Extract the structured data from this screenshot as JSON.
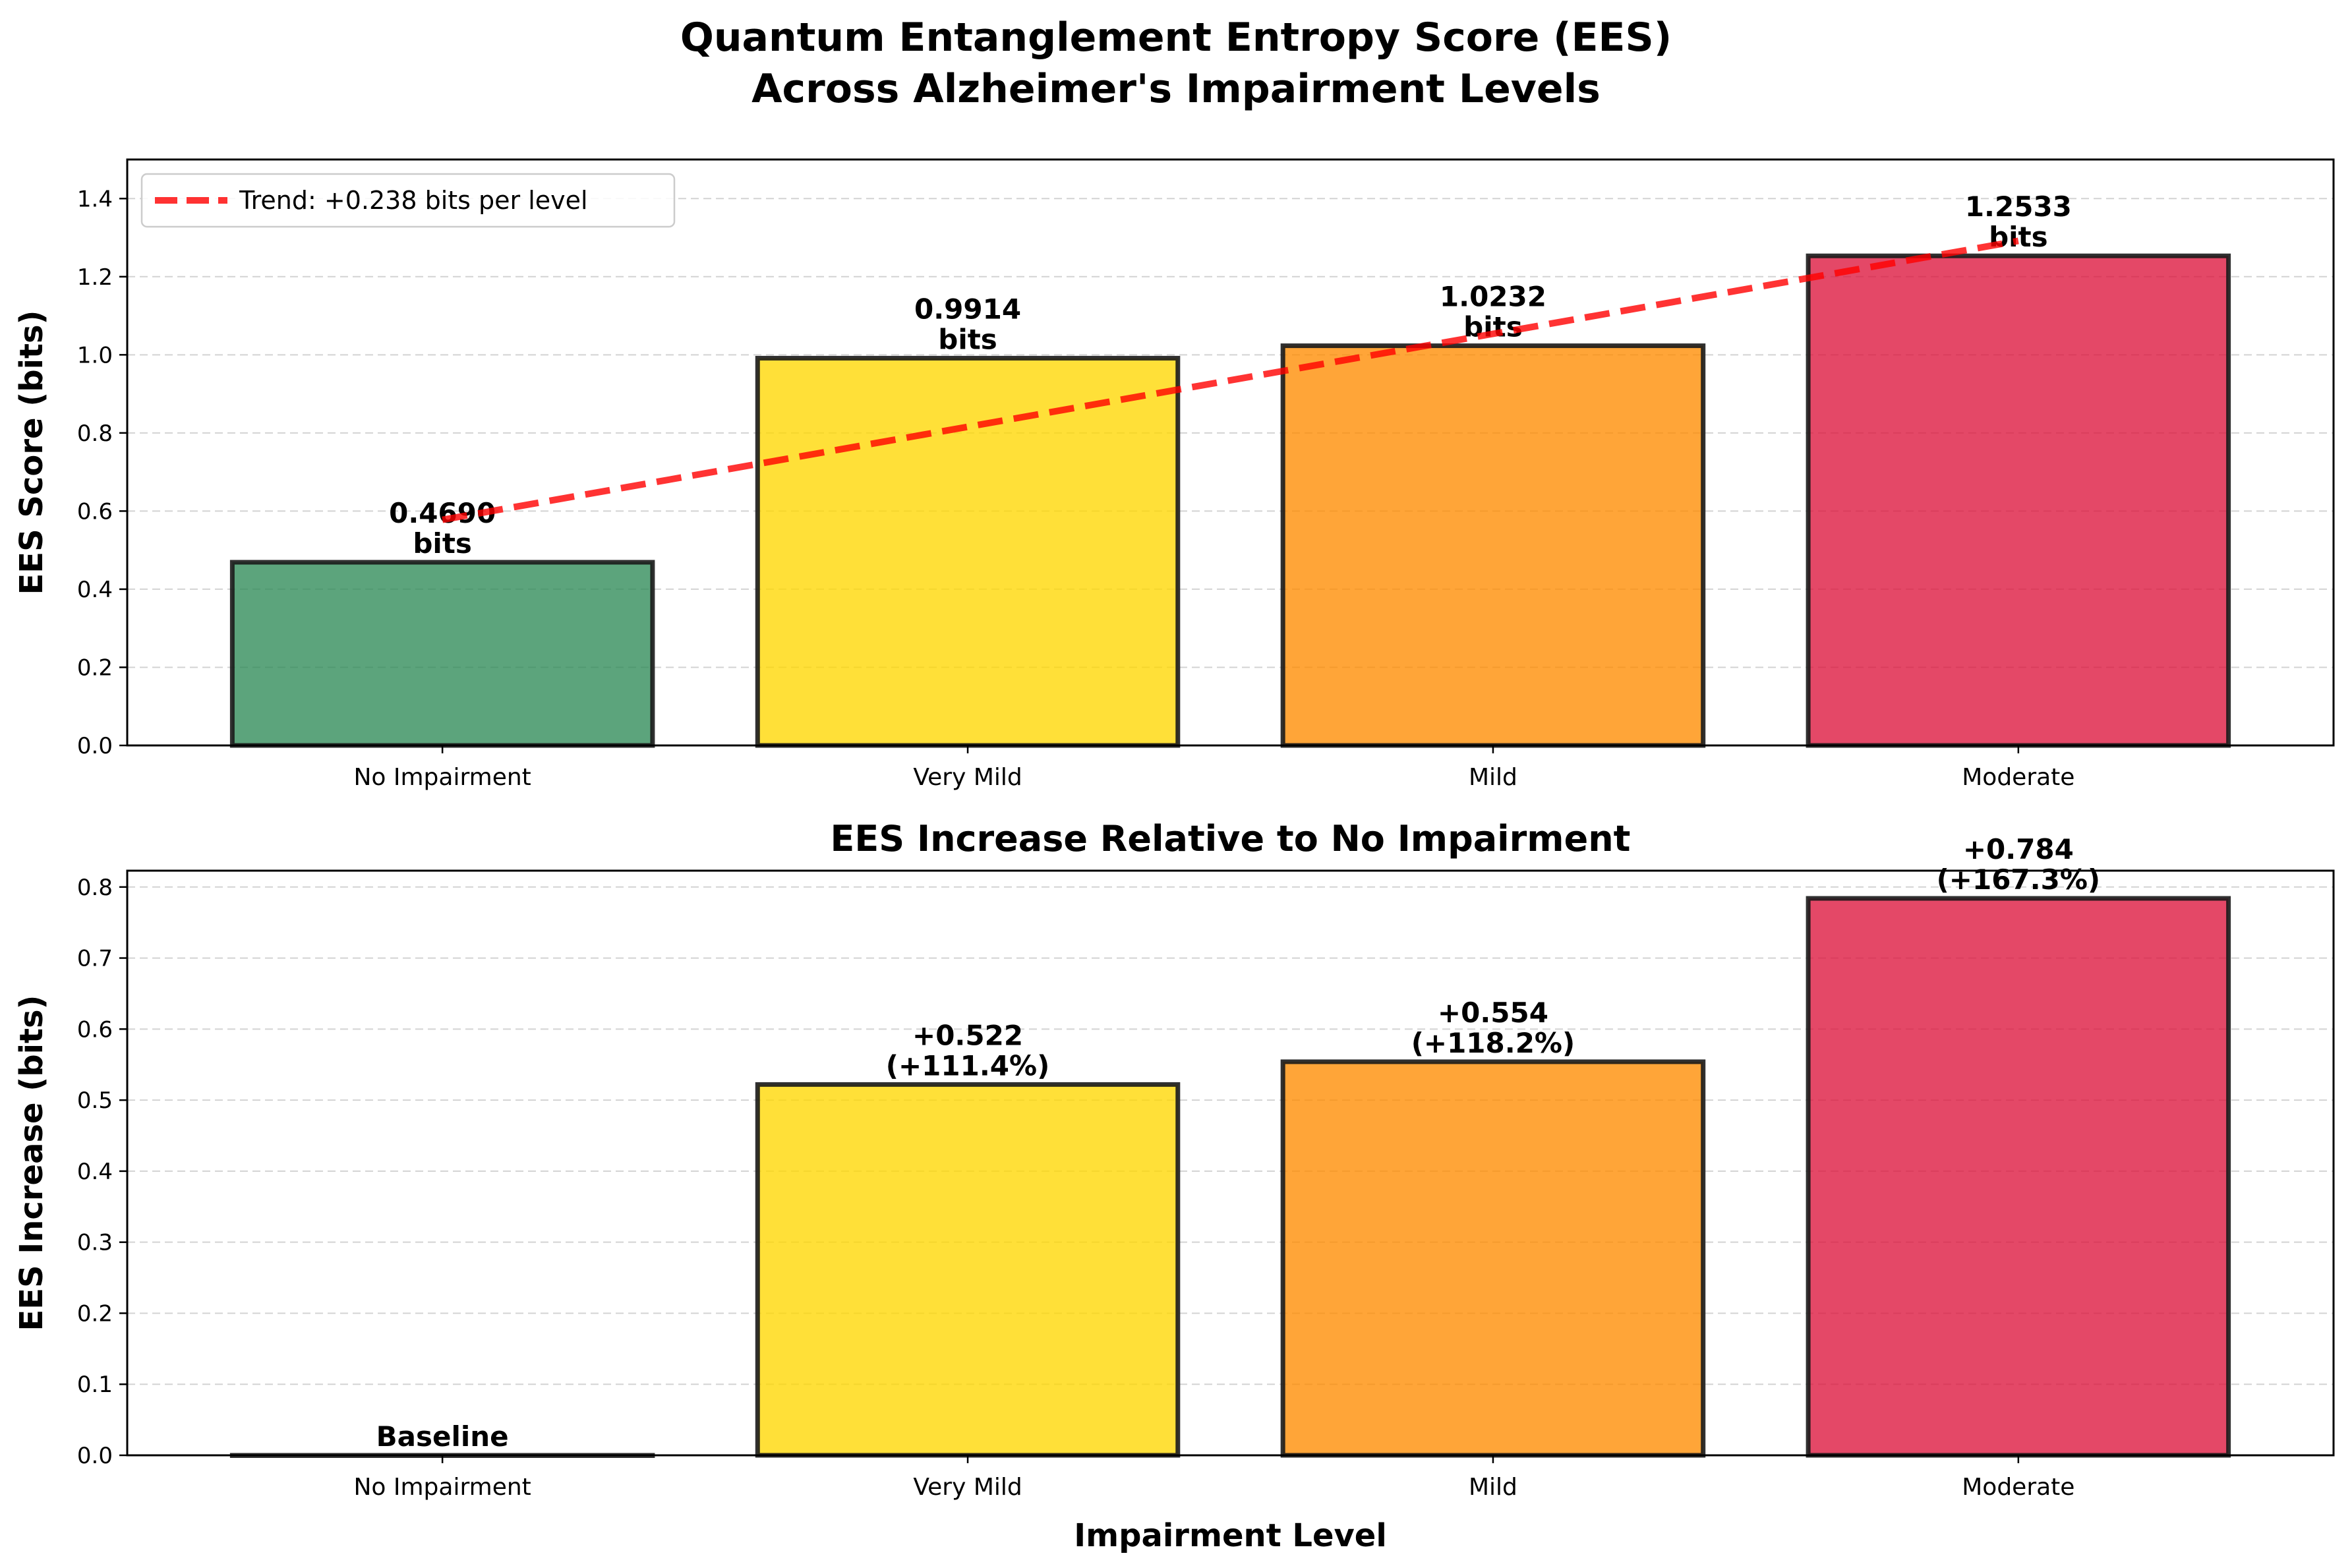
{
  "figure": {
    "title_line1": "Quantum Entanglement Entropy Score (EES)",
    "title_line2": "Across Alzheimer's Impairment Levels"
  },
  "chart_data": [
    {
      "type": "bar",
      "title": "",
      "categories": [
        "No Impairment",
        "Very Mild",
        "Mild",
        "Moderate"
      ],
      "values": [
        0.469,
        0.9914,
        1.0232,
        1.2533
      ],
      "colors": [
        "#2E8B57",
        "#FFD700",
        "#FF8C00",
        "#DC143C"
      ],
      "bar_labels": [
        [
          "0.4690",
          "bits"
        ],
        [
          "0.9914",
          "bits"
        ],
        [
          "1.0232",
          "bits"
        ],
        [
          "1.2533",
          "bits"
        ]
      ],
      "xlabel": "",
      "ylabel": "EES Score (bits)",
      "ylim": [
        0,
        1.5
      ],
      "yticks": [
        0.0,
        0.2,
        0.4,
        0.6,
        0.8,
        1.0,
        1.2,
        1.4
      ],
      "ytick_labels": [
        "0.0",
        "0.2",
        "0.4",
        "0.6",
        "0.8",
        "1.0",
        "1.2",
        "1.4"
      ],
      "grid": "horizontal dashed",
      "trend": {
        "label": "Trend: +0.238 bits per level",
        "slope": 0.238,
        "start": 0.5777,
        "color": "#FF0000"
      },
      "legend": {
        "placement": "top-left",
        "entries": [
          "Trend: +0.238 bits per level"
        ]
      }
    },
    {
      "type": "bar",
      "title": "EES Increase Relative to No Impairment",
      "categories": [
        "No Impairment",
        "Very Mild",
        "Mild",
        "Moderate"
      ],
      "values": [
        0.0,
        0.522,
        0.554,
        0.784
      ],
      "colors": [
        "#2E8B57",
        "#FFD700",
        "#FF8C00",
        "#DC143C"
      ],
      "bar_labels": [
        [
          "Baseline"
        ],
        [
          "+0.522",
          "(+111.4%)"
        ],
        [
          "+0.554",
          "(+118.2%)"
        ],
        [
          "+0.784",
          "(+167.3%)"
        ]
      ],
      "xlabel": "Impairment Level",
      "ylabel": "EES Increase (bits)",
      "ylim": [
        0,
        0.823
      ],
      "yticks": [
        0.0,
        0.1,
        0.2,
        0.3,
        0.4,
        0.5,
        0.6,
        0.7,
        0.8
      ],
      "ytick_labels": [
        "0.0",
        "0.1",
        "0.2",
        "0.3",
        "0.4",
        "0.5",
        "0.6",
        "0.7",
        "0.8"
      ],
      "grid": "horizontal dashed"
    }
  ]
}
